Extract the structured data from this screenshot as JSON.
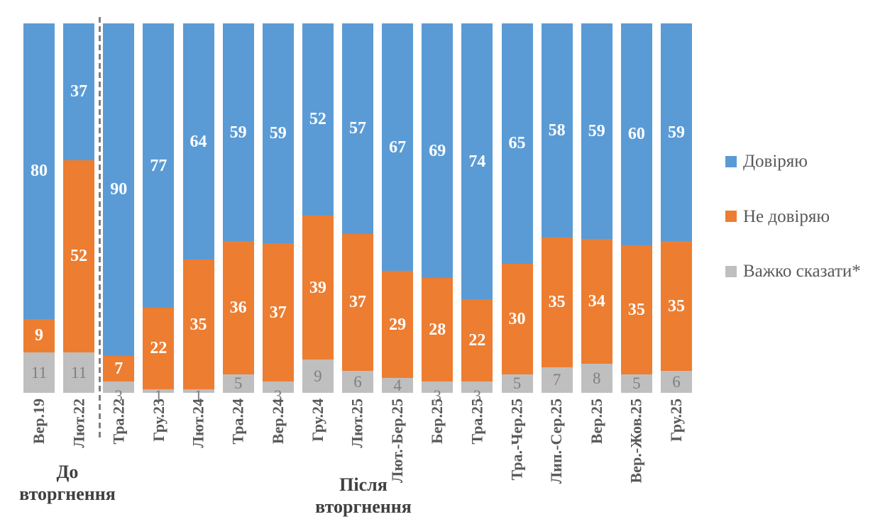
{
  "chart_data": {
    "type": "bar",
    "stacked": true,
    "unit": "percent",
    "ylim": [
      0,
      100
    ],
    "grid": false,
    "legend_position": "right",
    "categories": [
      "Вер.19",
      "Лют.22",
      "Тра.22",
      "Гру.23",
      "Лют.24",
      "Тра.24",
      "Вер.24",
      "Гру.24",
      "Лют.25",
      "Лют.-Бер.25",
      "Бер.25",
      "Тра.25",
      "Тра.-Чер.25",
      "Лип.-Сер.25",
      "Вер.25",
      "Вер.-Жов.25",
      "Гру.25"
    ],
    "series": [
      {
        "name": "Довіряю",
        "color": "#5B9BD5",
        "label_color": "#FFFFFF",
        "values": [
          80,
          37,
          90,
          77,
          64,
          59,
          59,
          52,
          57,
          67,
          69,
          74,
          65,
          58,
          59,
          60,
          59
        ]
      },
      {
        "name": "Не довіряю",
        "color": "#ED7D31",
        "label_color": "#FFFFFF",
        "values": [
          9,
          52,
          7,
          22,
          35,
          36,
          37,
          39,
          37,
          29,
          28,
          22,
          30,
          35,
          34,
          35,
          35
        ]
      },
      {
        "name": "Важко сказати*",
        "color": "#BFBFBF",
        "label_color": "#808080",
        "values": [
          11,
          11,
          3,
          1,
          1,
          5,
          3,
          9,
          6,
          4,
          3,
          3,
          5,
          7,
          8,
          5,
          6
        ]
      }
    ],
    "divider_after_category_index": 1,
    "group_annotations": [
      {
        "lines": [
          "До",
          "вторгнення"
        ],
        "span": [
          0,
          1
        ]
      },
      {
        "lines": [
          "Після",
          "вторгнення"
        ],
        "span": [
          2,
          16
        ]
      }
    ]
  }
}
